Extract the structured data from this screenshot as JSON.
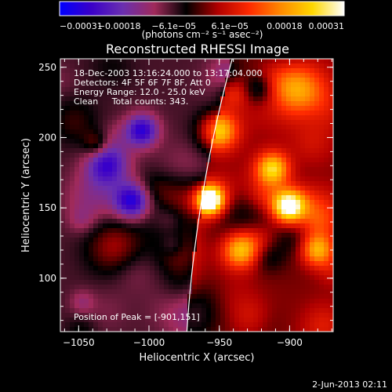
{
  "chart_data": {
    "type": "heatmap",
    "title": "Reconstructed RHESSI Image",
    "xlabel": "Heliocentric X (arcsec)",
    "ylabel": "Heliocentric Y (arcsec)",
    "xlim": [
      -1063,
      -869
    ],
    "ylim": [
      62,
      256
    ],
    "xticks": [
      -1050,
      -1000,
      -950,
      -900
    ],
    "xtick_labels": [
      "−1050",
      "−1000",
      "−950",
      "−900"
    ],
    "yticks": [
      100,
      150,
      200,
      250
    ],
    "ytick_labels": [
      "100",
      "150",
      "200",
      "250"
    ],
    "colorbar": {
      "range": [
        -0.00031,
        0.00031
      ],
      "tick_values": [
        -0.00031,
        -0.00018,
        -6.1e-05,
        6.1e-05,
        0.00018,
        0.00031
      ],
      "tick_labels": [
        "−0.00031",
        "−0.00018",
        "−6.1e−05",
        "6.1e−05",
        "0.00018",
        "0.00031"
      ],
      "unit_label": "(photons cm⁻² s⁻¹ asec⁻²)",
      "colors": [
        "#0000ff",
        "#3a00c8",
        "#6a2fb0",
        "#a02a5a",
        "#000000",
        "#b00000",
        "#ff2a00",
        "#ff8a00",
        "#ffd700",
        "#ffffff"
      ]
    },
    "annotations": [
      "18-Dec-2003 13:16:24.000 to 13:17:04.000",
      "Detectors: 4F 5F 6F 7F 8F, Att 0",
      "Energy Range: 12.0 - 25.0 keV",
      "Clean     Total counts: 343."
    ],
    "peak_label": "Position of Peak = [-901,151]",
    "peak": [
      -901,
      151
    ],
    "limb": {
      "center": [
        0,
        0
      ],
      "radius": 975
    },
    "grid": false,
    "legend": "none"
  },
  "footer": {
    "timestamp": "2-Jun-2013 02:11"
  }
}
